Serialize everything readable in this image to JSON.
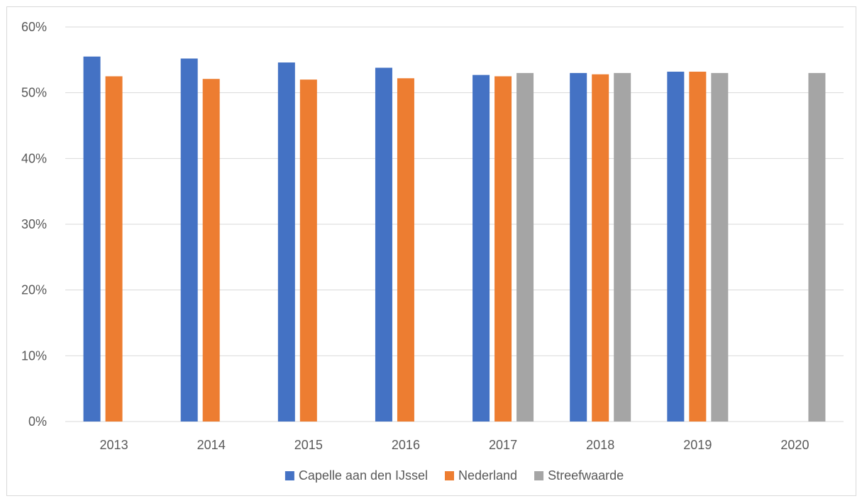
{
  "chart_data": {
    "type": "bar",
    "title": "",
    "xlabel": "",
    "ylabel": "",
    "categories": [
      "2013",
      "2014",
      "2015",
      "2016",
      "2017",
      "2018",
      "2019",
      "2020"
    ],
    "series": [
      {
        "name": "Capelle aan den IJssel",
        "color": "#4472C4",
        "values": [
          0.555,
          0.552,
          0.546,
          0.538,
          0.527,
          0.53,
          0.532,
          null
        ]
      },
      {
        "name": "Nederland",
        "color": "#ED7D31",
        "values": [
          0.525,
          0.521,
          0.52,
          0.522,
          0.525,
          0.528,
          0.532,
          null
        ]
      },
      {
        "name": "Streefwaarde",
        "color": "#A5A5A5",
        "values": [
          null,
          null,
          null,
          null,
          0.53,
          0.53,
          0.53,
          0.53
        ]
      }
    ],
    "ylim": [
      0,
      0.6
    ],
    "yticks": [
      "0%",
      "10%",
      "20%",
      "30%",
      "40%",
      "50%",
      "60%"
    ],
    "grid": true,
    "gridline_color": "#d9d9d9",
    "legend_position": "bottom"
  }
}
